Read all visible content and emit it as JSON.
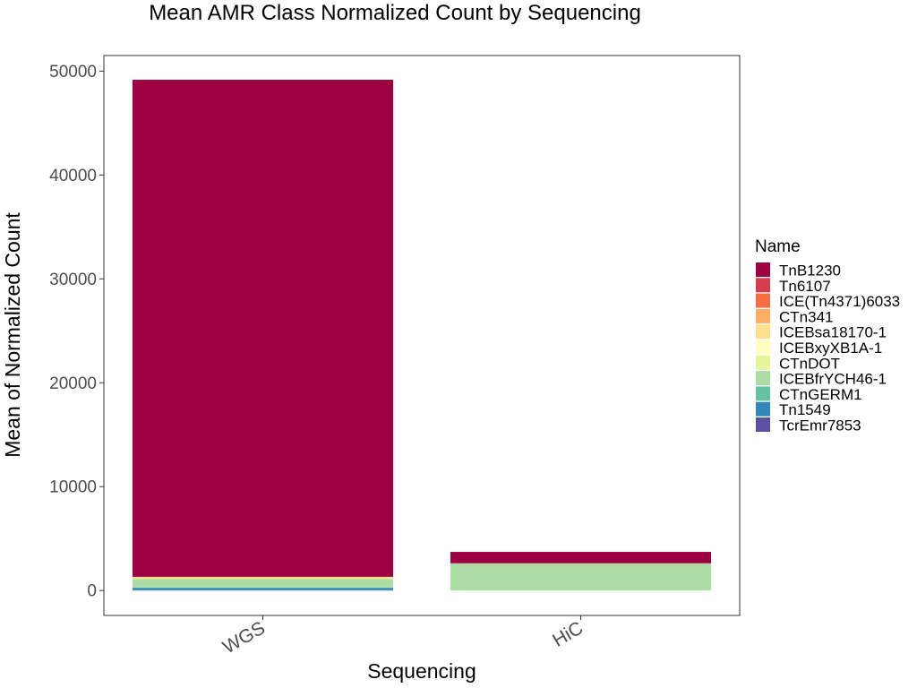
{
  "chart_data": {
    "type": "bar",
    "stacked": true,
    "title": "Mean AMR Class Normalized Count by Sequencing",
    "xlabel": "Sequencing",
    "ylabel": "Mean of Normalized Count",
    "categories": [
      "WGS",
      "HiC"
    ],
    "ylim": [
      -2400,
      51500
    ],
    "yticks": [
      0,
      10000,
      20000,
      30000,
      40000,
      50000
    ],
    "grid": false,
    "legend": {
      "title": "Name",
      "position": "right"
    },
    "series": [
      {
        "name": "TnB1230",
        "color": "#9E0142",
        "values": [
          47850,
          1100
        ]
      },
      {
        "name": "Tn6107",
        "color": "#D53E4F",
        "values": [
          0,
          0
        ]
      },
      {
        "name": "ICE(Tn4371)6033",
        "color": "#F46D43",
        "values": [
          0,
          0
        ]
      },
      {
        "name": "CTn341",
        "color": "#FDAE61",
        "values": [
          0,
          0
        ]
      },
      {
        "name": "ICEBsa18170-1",
        "color": "#FEE08B",
        "values": [
          200,
          0
        ]
      },
      {
        "name": "ICEBxyXB1A-1",
        "color": "#FFFFBF",
        "values": [
          0,
          0
        ]
      },
      {
        "name": "CTnDOT",
        "color": "#E6F598",
        "values": [
          0,
          0
        ]
      },
      {
        "name": "ICEBfrYCH46-1",
        "color": "#ABDDA4",
        "values": [
          830,
          2620
        ]
      },
      {
        "name": "CTnGERM1",
        "color": "#66C2A5",
        "values": [
          60,
          0
        ]
      },
      {
        "name": "Tn1549",
        "color": "#3288BD",
        "values": [
          200,
          0
        ]
      },
      {
        "name": "TcrEmr7853",
        "color": "#5E4FA2",
        "values": [
          30,
          0
        ]
      }
    ]
  }
}
